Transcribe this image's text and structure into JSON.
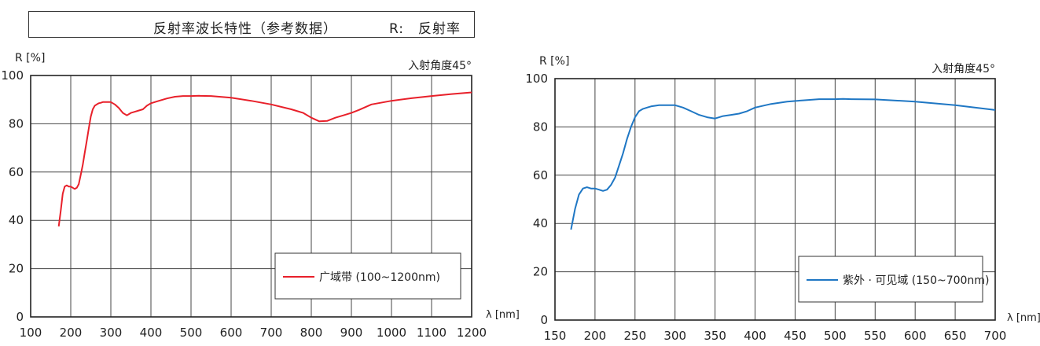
{
  "title": {
    "main": "反射率波长特性（参考数据）",
    "legend": "R:　反射率"
  },
  "chart_data": [
    {
      "type": "line",
      "ylabel": "R [%]",
      "xlabel": "λ [nm]",
      "annotation": "入射角度45°",
      "xlim": [
        100,
        1200
      ],
      "ylim": [
        0,
        100
      ],
      "x_ticks": [
        100,
        200,
        300,
        400,
        500,
        600,
        700,
        800,
        900,
        1000,
        1100,
        1200
      ],
      "y_ticks": [
        0,
        20,
        40,
        60,
        80,
        100
      ],
      "grid": true,
      "legend_position": "bottom-right",
      "series": [
        {
          "name": "广域带 (100~1200nm)",
          "color": "#e8202a",
          "x": [
            170,
            175,
            180,
            185,
            190,
            195,
            200,
            205,
            210,
            215,
            220,
            225,
            230,
            235,
            240,
            245,
            250,
            255,
            260,
            265,
            270,
            275,
            280,
            290,
            300,
            310,
            320,
            330,
            340,
            350,
            360,
            370,
            380,
            390,
            400,
            420,
            440,
            460,
            480,
            500,
            520,
            550,
            600,
            650,
            700,
            750,
            780,
            800,
            820,
            840,
            860,
            880,
            900,
            920,
            950,
            1000,
            1050,
            1100,
            1150,
            1200
          ],
          "y": [
            37.5,
            44,
            51,
            54,
            54.5,
            54,
            54,
            53.5,
            53,
            53.5,
            55,
            59,
            63,
            68,
            73,
            78,
            83,
            86,
            87.5,
            88,
            88.5,
            88.7,
            89,
            89,
            89,
            88,
            86.5,
            84.5,
            83.5,
            84.5,
            85,
            85.5,
            86,
            87.5,
            88.5,
            89.5,
            90.5,
            91.2,
            91.5,
            91.5,
            91.6,
            91.5,
            90.8,
            89.5,
            88,
            86,
            84.5,
            82.5,
            81,
            81.2,
            82.5,
            83.5,
            84.5,
            85.8,
            88,
            89.5,
            90.6,
            91.5,
            92.3,
            93
          ]
        }
      ]
    },
    {
      "type": "line",
      "ylabel": "R [%]",
      "xlabel": "λ [nm]",
      "annotation": "入射角度45°",
      "xlim": [
        150,
        700
      ],
      "ylim": [
        0,
        100
      ],
      "x_ticks": [
        150,
        200,
        250,
        300,
        350,
        400,
        450,
        500,
        550,
        600,
        650,
        700
      ],
      "y_ticks": [
        0,
        20,
        40,
        60,
        80,
        100
      ],
      "grid": true,
      "legend_position": "bottom-right",
      "series": [
        {
          "name": "紫外 · 可见域 (150~700nm)",
          "color": "#1f77c4",
          "x": [
            170,
            175,
            180,
            185,
            190,
            195,
            200,
            205,
            210,
            215,
            220,
            225,
            230,
            235,
            240,
            245,
            250,
            255,
            260,
            265,
            270,
            280,
            290,
            300,
            310,
            320,
            330,
            340,
            350,
            360,
            370,
            380,
            390,
            400,
            420,
            440,
            460,
            480,
            500,
            510,
            520,
            550,
            600,
            650,
            700
          ],
          "y": [
            37.5,
            46,
            52,
            54.5,
            55,
            54.5,
            54.5,
            54,
            53.5,
            54,
            56,
            59,
            64,
            69,
            75,
            80,
            84,
            86.5,
            87.5,
            88,
            88.5,
            89,
            89,
            89,
            88,
            86.5,
            85,
            84,
            83.5,
            84.5,
            85,
            85.5,
            86.5,
            88,
            89.5,
            90.5,
            91,
            91.5,
            91.5,
            91.6,
            91.5,
            91.4,
            90.5,
            89,
            87
          ]
        }
      ]
    }
  ]
}
